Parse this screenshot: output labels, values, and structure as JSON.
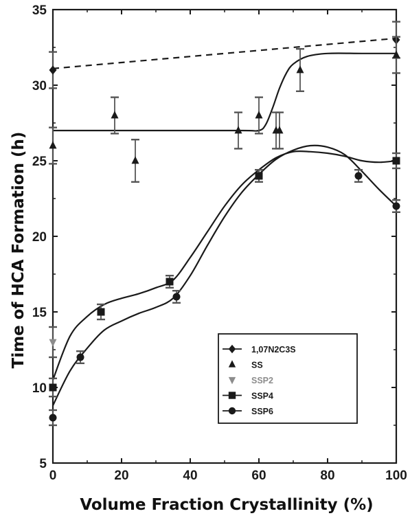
{
  "chart_data": {
    "type": "scatter",
    "xlabel": "Volume Fraction Crystallinity (%)",
    "ylabel": "Time of HCA Formation (h)",
    "xlim": [
      0,
      100
    ],
    "ylim": [
      5,
      35
    ],
    "xticks": [
      "0",
      "20",
      "40",
      "60",
      "80",
      "100"
    ],
    "yticks": [
      "5",
      "10",
      "15",
      "20",
      "25",
      "30",
      "35"
    ],
    "legend_position": "bottom-right",
    "series": [
      {
        "name": "1,07N2C3S",
        "marker": "diamond",
        "color": "#1a1a1a",
        "x": [
          0,
          100
        ],
        "y": [
          31,
          33
        ],
        "err": [
          1.2,
          1.2
        ],
        "fit": {
          "style": "dashed",
          "x": [
            0,
            100
          ],
          "y": [
            31.1,
            33.1
          ]
        }
      },
      {
        "name": "SS",
        "marker": "triangle-up",
        "color": "#1a1a1a",
        "x": [
          0,
          18,
          24,
          54,
          60,
          65,
          66,
          72,
          100
        ],
        "y": [
          26,
          28,
          25,
          27,
          28,
          27,
          27,
          31,
          32
        ],
        "err": [
          1.2,
          1.2,
          1.4,
          1.2,
          1.2,
          1.2,
          1.2,
          1.4,
          1.2
        ],
        "fit": {
          "style": "solid",
          "x": [
            0,
            30,
            55,
            60,
            62,
            64,
            66,
            68,
            70,
            74,
            80,
            90,
            100
          ],
          "y": [
            27,
            27,
            27,
            27,
            27.4,
            28.5,
            29.8,
            30.8,
            31.4,
            31.9,
            32.1,
            32.1,
            32.1
          ]
        }
      },
      {
        "name": "SSP2",
        "marker": "triangle-down",
        "color": "#8c8c8c",
        "x": [
          0
        ],
        "y": [
          13
        ],
        "err": [
          1.0
        ],
        "fit": null
      },
      {
        "name": "SSP4",
        "marker": "square",
        "color": "#1a1a1a",
        "x": [
          0,
          14,
          34,
          60,
          100
        ],
        "y": [
          10,
          15,
          17,
          24,
          25
        ],
        "err": [
          0.6,
          0.5,
          0.4,
          0.4,
          0.5
        ],
        "fit": {
          "style": "solid",
          "x": [
            0,
            5,
            10,
            15,
            20,
            25,
            30,
            35,
            40,
            45,
            50,
            55,
            60,
            65,
            70,
            75,
            80,
            85,
            90,
            95,
            100
          ],
          "y": [
            10.5,
            13.4,
            14.7,
            15.5,
            15.9,
            16.2,
            16.6,
            17.1,
            18.6,
            20.3,
            22.0,
            23.4,
            24.4,
            25.2,
            25.6,
            25.6,
            25.5,
            25.3,
            25.0,
            24.9,
            25.0
          ]
        }
      },
      {
        "name": "SSP6",
        "marker": "circle",
        "color": "#1a1a1a",
        "x": [
          0,
          8,
          36,
          60,
          89,
          100
        ],
        "y": [
          8,
          12,
          16,
          24,
          24,
          22
        ],
        "err": [
          0.5,
          0.4,
          0.4,
          0.4,
          0.4,
          0.4
        ],
        "fit": {
          "style": "solid",
          "x": [
            0,
            5,
            10,
            15,
            20,
            25,
            30,
            35,
            40,
            45,
            50,
            55,
            60,
            65,
            70,
            75,
            80,
            85,
            90,
            95,
            100
          ],
          "y": [
            8.8,
            11.1,
            12.6,
            13.8,
            14.4,
            14.9,
            15.3,
            15.9,
            17.4,
            19.4,
            21.3,
            22.9,
            24.1,
            25.1,
            25.7,
            26.0,
            25.9,
            25.4,
            24.3,
            23.1,
            22.0
          ]
        }
      }
    ]
  }
}
